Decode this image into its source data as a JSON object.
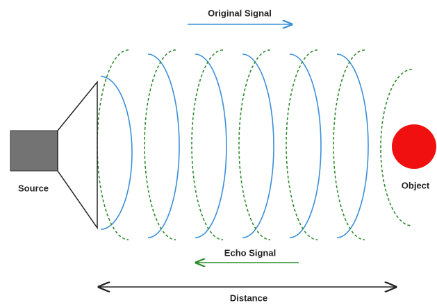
{
  "labels": {
    "original_signal": "Original Signal",
    "echo_signal": "Echo Signal",
    "source": "Source",
    "object": "Object",
    "distance": "Distance"
  }
}
